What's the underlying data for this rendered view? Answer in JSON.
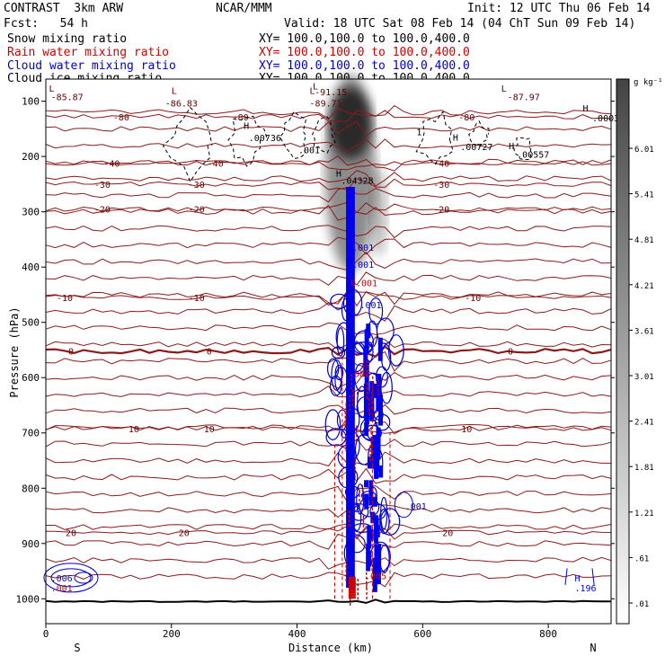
{
  "header": {
    "model": "CONTRAST  3km ARW",
    "org": "NCAR/MMM",
    "init": "Init: 12 UTC Thu 06 Feb 14",
    "fcst": "Fcst:   54 h",
    "valid": "Valid: 18 UTC Sat 08 Feb 14 (04 ChT Sun 09 Feb 14)"
  },
  "fields": [
    {
      "label": "Snow mixing ratio",
      "xy": "XY= 100.0,100.0 to 100.0,400.0",
      "color": "#000000"
    },
    {
      "label": "Rain water mixing ratio",
      "xy": "XY= 100.0,100.0 to 100.0,400.0",
      "color": "#cc0000"
    },
    {
      "label": "Cloud water mixing ratio",
      "xy": "XY= 100.0,100.0 to 100.0,400.0",
      "color": "#0000cc"
    },
    {
      "label": "Cloud ice mixing ratio",
      "xy": "XY= 100.0,100.0 to 100.0,400.0",
      "color": "#000000"
    }
  ],
  "chart_data": {
    "type": "contour",
    "xlabel": "Distance (km)",
    "ylabel": "Pressure (hPa)",
    "xlim": [
      0,
      900
    ],
    "ylim": [
      1045,
      60
    ],
    "x_ticks": [
      0,
      200,
      400,
      600,
      800
    ],
    "y_ticks": [
      100,
      200,
      300,
      400,
      500,
      600,
      700,
      800,
      900,
      1000
    ],
    "x_ends": {
      "left": "S",
      "right": "N"
    },
    "colorbar": {
      "units": "g kg⁻¹",
      "ticks": [
        "6.01",
        "5.41",
        "4.81",
        "4.21",
        "3.61",
        "3.01",
        "2.41",
        "1.81",
        "1.21",
        ".61",
        ".01"
      ]
    },
    "temperature_isotherms": [
      {
        "value": "-80",
        "p": 128,
        "labels_x": [
          120,
          310,
          670
        ]
      },
      {
        "value": "-40",
        "p": 212,
        "labels_x": [
          105,
          270,
          630
        ]
      },
      {
        "value": "-30",
        "p": 250,
        "labels_x": [
          90,
          240,
          630
        ]
      },
      {
        "value": "-20",
        "p": 295,
        "labels_x": [
          90,
          240,
          630
        ]
      },
      {
        "value": "-10",
        "p": 455,
        "labels_x": [
          30,
          240,
          680
        ]
      },
      {
        "value": "0",
        "p": 552,
        "labels_x": [
          40,
          260,
          740
        ]
      },
      {
        "value": "10",
        "p": 692,
        "labels_x": [
          140,
          260,
          670
        ]
      },
      {
        "value": "20",
        "p": 880,
        "labels_x": [
          40,
          220,
          640
        ]
      }
    ],
    "annotations": [
      {
        "text": "L",
        "x": 5,
        "p": 76,
        "color": "#660000"
      },
      {
        "text": "-85.87",
        "x": 8,
        "p": 92,
        "color": "#660000"
      },
      {
        "text": "L",
        "x": 200,
        "p": 80,
        "color": "#660000"
      },
      {
        "text": "-86.83",
        "x": 190,
        "p": 103,
        "color": "#660000"
      },
      {
        "text": "L",
        "x": 425,
        "p": 72,
        "color": "#660000"
      },
      {
        "text": "-91.15",
        "x": 428,
        "p": 83,
        "color": "#660000"
      },
      {
        "text": "L",
        "x": 420,
        "p": 80,
        "color": "#660000"
      },
      {
        "text": "-89.71",
        "x": 420,
        "p": 103,
        "color": "#660000"
      },
      {
        "text": "L",
        "x": 725,
        "p": 76,
        "color": "#660000"
      },
      {
        "text": "-87.97",
        "x": 735,
        "p": 92,
        "color": "#660000"
      },
      {
        "text": "H",
        "x": 315,
        "p": 144,
        "color": "#000000"
      },
      {
        "text": ".00736",
        "x": 323,
        "p": 166,
        "color": "#000000"
      },
      {
        "text": ".001",
        "x": 402,
        "p": 188,
        "color": "#000000"
      },
      {
        "text": "H",
        "x": 462,
        "p": 230,
        "color": "#000000"
      },
      {
        "text": ".04328",
        "x": 470,
        "p": 243,
        "color": "#000000"
      },
      {
        "text": "H",
        "x": 648,
        "p": 165,
        "color": "#000000"
      },
      {
        "text": ".00727",
        "x": 660,
        "p": 182,
        "color": "#000000"
      },
      {
        "text": "H",
        "x": 737,
        "p": 180,
        "color": "#000000"
      },
      {
        "text": ".00557",
        "x": 750,
        "p": 196,
        "color": "#000000"
      },
      {
        "text": "H",
        "x": 855,
        "p": 112,
        "color": "#000000"
      },
      {
        "text": ".0003",
        "x": 870,
        "p": 130,
        "color": "#000000"
      },
      {
        "text": "1",
        "x": 590,
        "p": 155,
        "color": "#000000"
      },
      {
        "text": ".001",
        "x": 488,
        "p": 364,
        "color": "#0000cc"
      },
      {
        "text": ".001",
        "x": 488,
        "p": 395,
        "color": "#0000cc"
      },
      {
        "text": "0.001",
        "x": 485,
        "p": 428,
        "color": "#cc0000"
      },
      {
        "text": ".001",
        "x": 500,
        "p": 468,
        "color": "#0000cc"
      },
      {
        "text": ".001",
        "x": 482,
        "p": 592,
        "color": "#cc0000"
      },
      {
        "text": ".001",
        "x": 572,
        "p": 832,
        "color": "#0000cc"
      },
      {
        "text": ".005",
        "x": 508,
        "p": 958,
        "color": "#cc0000"
      },
      {
        "text": "H",
        "x": 842,
        "p": 962,
        "color": "#0000cc"
      },
      {
        "text": ".196",
        "x": 842,
        "p": 980,
        "color": "#0000cc"
      },
      {
        "text": ".006",
        "x": 8,
        "p": 962,
        "color": "#0000cc"
      },
      {
        "text": ".001",
        "x": 8,
        "p": 980,
        "color": "#cc0000"
      }
    ]
  }
}
